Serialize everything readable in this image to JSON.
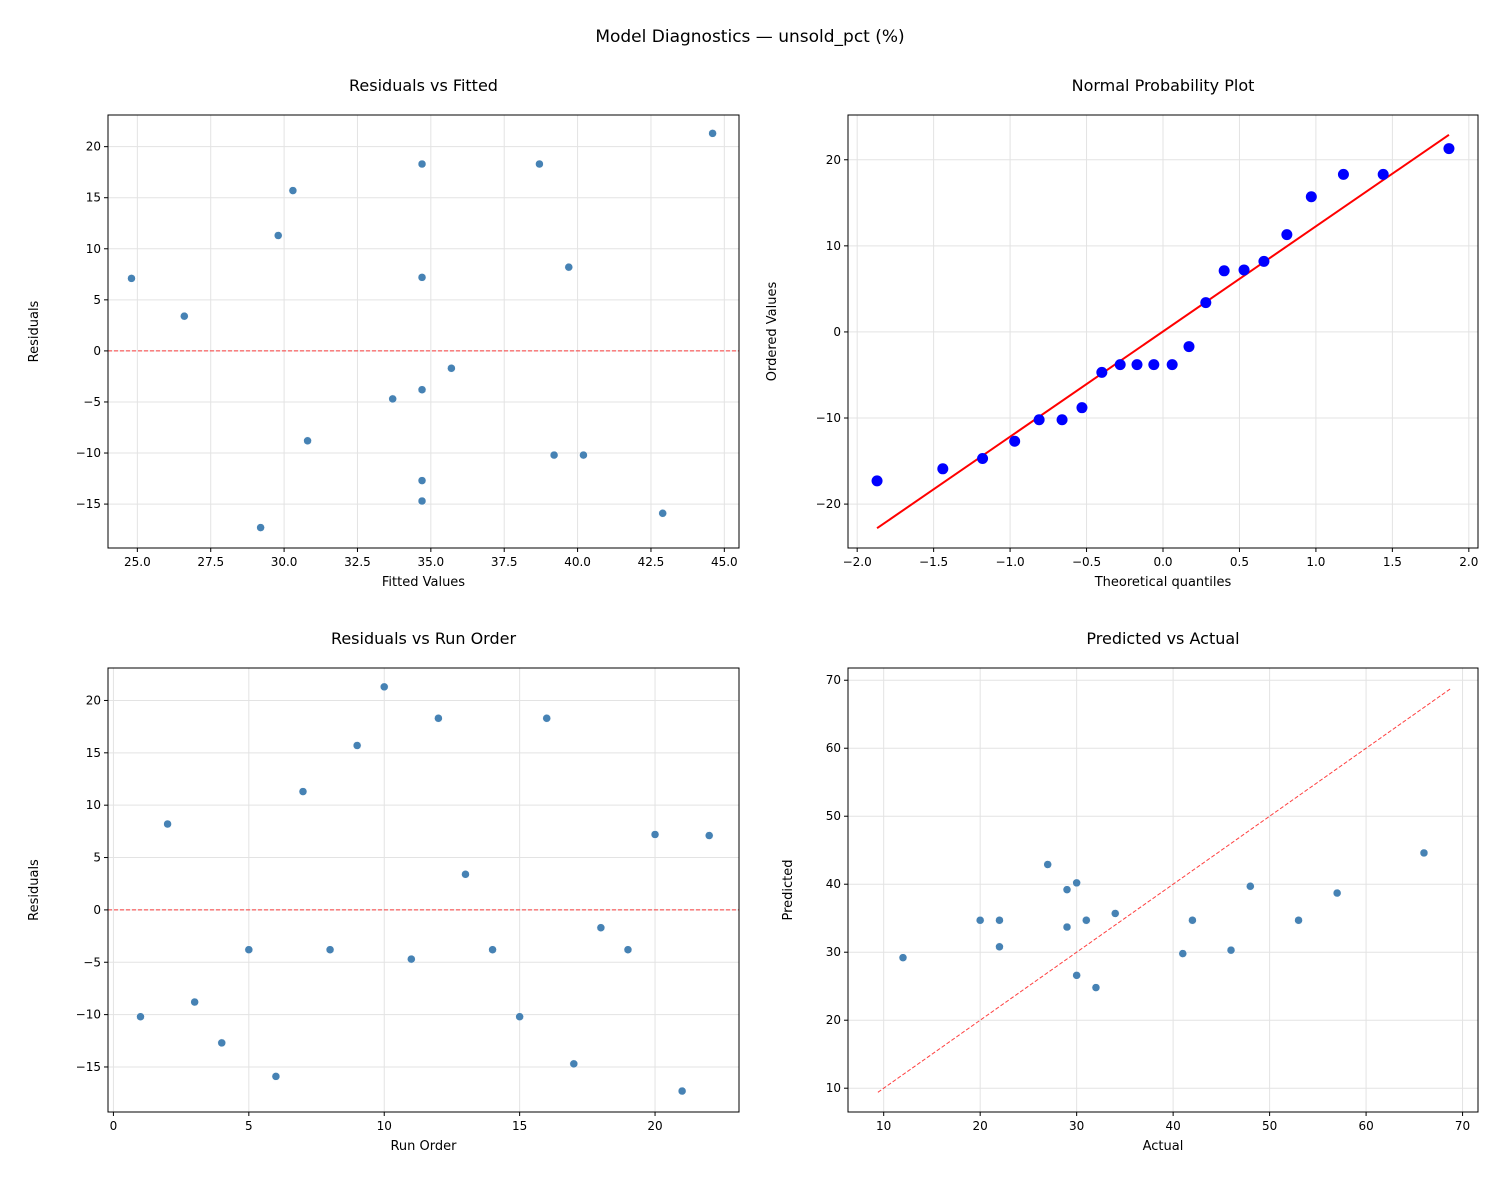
{
  "title": "Model Diagnostics — unsold_pct (%)",
  "colors": {
    "points": "#4682b4",
    "qq_points": "#0000ff",
    "reference": "#ff0000",
    "grid": "#e3e3e3"
  },
  "chart_data": [
    {
      "type": "scatter",
      "title": "Residuals vs Fitted",
      "xlabel": "Fitted Values",
      "ylabel": "Residuals",
      "xlim": [
        24.0,
        45.5
      ],
      "ylim": [
        -19.3,
        23.1
      ],
      "grid": true,
      "xticks": [
        25,
        27.5,
        30,
        32.5,
        35,
        37.5,
        40,
        42.5,
        45
      ],
      "xtick_labels": [
        "25.0",
        "27.5",
        "30.0",
        "32.5",
        "35.0",
        "37.5",
        "40.0",
        "42.5",
        "45.0"
      ],
      "yticks": [
        -15,
        -10,
        -5,
        0,
        5,
        10,
        15,
        20
      ],
      "ytick_labels": [
        "−15",
        "−10",
        "−5",
        "0",
        "5",
        "10",
        "15",
        "20"
      ],
      "x": [
        39.2,
        39.7,
        30.8,
        34.7,
        34.7,
        42.9,
        29.8,
        34.7,
        30.3,
        44.6,
        33.7,
        34.7,
        26.6,
        34.7,
        40.2,
        38.7,
        34.7,
        35.7,
        34.7,
        34.7,
        29.2,
        24.8
      ],
      "y": [
        -10.2,
        8.2,
        -8.8,
        -12.7,
        -3.8,
        -15.9,
        11.3,
        -3.8,
        15.7,
        21.3,
        -4.7,
        18.3,
        3.4,
        -3.8,
        -10.2,
        18.3,
        -14.7,
        -1.7,
        -3.8,
        7.2,
        -17.3,
        7.1
      ],
      "reference_line": {
        "style": "dashed",
        "type": "horizontal",
        "y": 0
      }
    },
    {
      "type": "scatter",
      "title": "Normal Probability Plot",
      "xlabel": "Theoretical quantiles",
      "ylabel": "Ordered Values",
      "xlim": [
        -2.06,
        2.06
      ],
      "ylim": [
        -25.1,
        25.2
      ],
      "grid": true,
      "xticks": [
        -2,
        -1.5,
        -1,
        -0.5,
        0,
        0.5,
        1,
        1.5,
        2
      ],
      "xtick_labels": [
        "−2.0",
        "−1.5",
        "−1.0",
        "−0.5",
        "0.0",
        "0.5",
        "1.0",
        "1.5",
        "2.0"
      ],
      "yticks": [
        -20,
        -10,
        0,
        10,
        20
      ],
      "ytick_labels": [
        "−20",
        "−10",
        "0",
        "10",
        "20"
      ],
      "x": [
        -1.87,
        -1.44,
        -1.18,
        -0.97,
        -0.81,
        -0.66,
        -0.53,
        -0.4,
        -0.28,
        -0.17,
        -0.06,
        0.06,
        0.17,
        0.28,
        0.4,
        0.53,
        0.66,
        0.81,
        0.97,
        1.18,
        1.44,
        1.87
      ],
      "y": [
        -17.3,
        -15.9,
        -14.7,
        -12.7,
        -10.2,
        -10.2,
        -8.8,
        -4.7,
        -3.8,
        -3.8,
        -3.8,
        -3.8,
        -1.7,
        3.4,
        7.1,
        7.2,
        8.2,
        11.3,
        15.7,
        18.3,
        18.3,
        21.3
      ],
      "reference_line": {
        "style": "solid",
        "type": "segment",
        "x": [
          -1.87,
          1.87
        ],
        "y": [
          -22.8,
          22.9
        ]
      }
    },
    {
      "type": "scatter",
      "title": "Residuals vs Run Order",
      "xlabel": "Run Order",
      "ylabel": "Residuals",
      "xlim": [
        -0.2,
        23.1
      ],
      "ylim": [
        -19.3,
        23.1
      ],
      "grid": true,
      "xticks": [
        0,
        5,
        10,
        15,
        20
      ],
      "xtick_labels": [
        "0",
        "5",
        "10",
        "15",
        "20"
      ],
      "yticks": [
        -15,
        -10,
        -5,
        0,
        5,
        10,
        15,
        20
      ],
      "ytick_labels": [
        "−15",
        "−10",
        "−5",
        "0",
        "5",
        "10",
        "15",
        "20"
      ],
      "x": [
        1,
        2,
        3,
        4,
        5,
        6,
        7,
        8,
        9,
        10,
        11,
        12,
        13,
        14,
        15,
        16,
        17,
        18,
        19,
        20,
        21,
        22
      ],
      "y": [
        -10.2,
        8.2,
        -8.8,
        -12.7,
        -3.8,
        -15.9,
        11.3,
        -3.8,
        15.7,
        21.3,
        -4.7,
        18.3,
        3.4,
        -3.8,
        -10.2,
        18.3,
        -14.7,
        -1.7,
        -3.8,
        7.2,
        -17.3,
        7.1
      ],
      "reference_line": {
        "style": "dashed",
        "type": "horizontal",
        "y": 0
      }
    },
    {
      "type": "scatter",
      "title": "Predicted vs Actual",
      "xlabel": "Actual",
      "ylabel": "Predicted",
      "xlim": [
        6.3,
        71.6
      ],
      "ylim": [
        6.5,
        71.8
      ],
      "grid": true,
      "xticks": [
        10,
        20,
        30,
        40,
        50,
        60,
        70
      ],
      "xtick_labels": [
        "10",
        "20",
        "30",
        "40",
        "50",
        "60",
        "70"
      ],
      "yticks": [
        10,
        20,
        30,
        40,
        50,
        60,
        70
      ],
      "ytick_labels": [
        "10",
        "20",
        "30",
        "40",
        "50",
        "60",
        "70"
      ],
      "x": [
        29,
        48,
        22,
        22,
        31,
        27,
        41,
        31,
        46,
        66,
        29,
        53,
        30,
        31,
        30,
        57,
        20,
        34,
        31,
        42,
        12,
        32
      ],
      "y": [
        39.2,
        39.7,
        30.8,
        34.7,
        34.7,
        42.9,
        29.8,
        34.7,
        30.3,
        44.6,
        33.7,
        34.7,
        26.6,
        34.7,
        40.2,
        38.7,
        34.7,
        35.7,
        34.7,
        34.7,
        29.2,
        24.8
      ],
      "reference_line": {
        "style": "dashed",
        "type": "segment",
        "x": [
          9.4,
          68.8
        ],
        "y": [
          9.4,
          68.8
        ]
      }
    }
  ]
}
